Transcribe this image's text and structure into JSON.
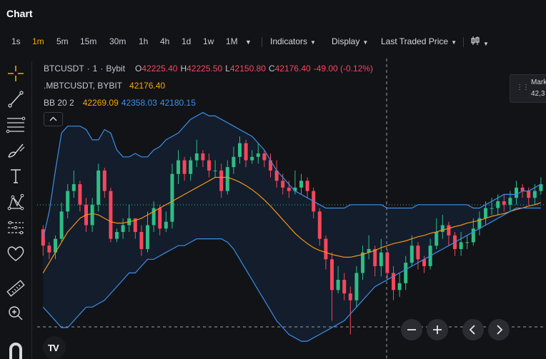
{
  "header": {
    "title": "Chart"
  },
  "toolbar": {
    "timeframes": [
      "1s",
      "1m",
      "5m",
      "15m",
      "30m",
      "1h",
      "4h",
      "1d",
      "1w",
      "1M"
    ],
    "active_timeframe": "1m",
    "indicators_label": "Indicators",
    "display_label": "Display",
    "price_type_label": "Last Traded Price"
  },
  "legend": {
    "symbol": "BTCUSDT",
    "interval": "1",
    "exchange": "Bybit",
    "o_label": "O",
    "open": "42225.40",
    "h_label": "H",
    "high": "42225.50",
    "l_label": "L",
    "low": "42150.80",
    "c_label": "C",
    "close": "42176.40",
    "change": "-49.00 (-0.12%)",
    "index_symbol": ".MBTCUSDT, BYBIT",
    "index_value": "42176.40",
    "bb_label": "BB 20 2",
    "bb_basis": "42269.09",
    "bb_upper": "42358.03",
    "bb_lower": "42180.15"
  },
  "mark_price": {
    "label": "Mark",
    "value": "42,3"
  },
  "colors": {
    "up": "#2ebd85",
    "down": "#f6465d",
    "basis": "#f7931a",
    "band": "#3d8ee8",
    "band_fill": "#131d2b",
    "accent": "#f7a600"
  },
  "icons": {
    "left_toolbar": [
      "crosshair-icon",
      "trend-line-icon",
      "fib-lines-icon",
      "brush-icon",
      "text-icon",
      "pattern-icon",
      "measure-lines-icon",
      "heart-icon",
      "ruler-icon",
      "zoom-in-icon",
      "magnet-icon"
    ],
    "nav": [
      "zoom-out-icon",
      "zoom-in-icon",
      "scroll-left-icon",
      "scroll-right-icon"
    ]
  },
  "chart_data": {
    "type": "candlestick",
    "x_step": "1m",
    "ylim": [
      42000,
      42440
    ],
    "grid": false,
    "open": [
      42190,
      42166,
      42156,
      42176,
      42216,
      42246,
      42256,
      42226,
      42196,
      42226,
      42276,
      42246,
      42176,
      42186,
      42196,
      42206,
      42186,
      42161,
      42196,
      42221,
      42191,
      42201,
      42271,
      42291,
      42271,
      42291,
      42301,
      42291,
      42276,
      42276,
      42246,
      42281,
      42296,
      42316,
      42291,
      42296,
      42301,
      42291,
      42276,
      42261,
      42251,
      42246,
      42251,
      42261,
      42246,
      42216,
      42176,
      42146,
      42101,
      42116,
      42096,
      42086,
      42126,
      42156,
      42161,
      42136,
      42156,
      42126,
      42101,
      42111,
      42141,
      42166,
      42146,
      42136,
      42166,
      42186,
      42196,
      42181,
      42161,
      42171,
      42171,
      42191,
      42206,
      42221,
      42221,
      42231,
      42226,
      42236,
      42251,
      42246,
      42236,
      42246
    ],
    "close": [
      42166,
      42156,
      42176,
      42216,
      42246,
      42256,
      42226,
      42196,
      42226,
      42276,
      42246,
      42176,
      42186,
      42196,
      42206,
      42186,
      42161,
      42196,
      42221,
      42191,
      42201,
      42271,
      42291,
      42271,
      42291,
      42301,
      42291,
      42276,
      42276,
      42246,
      42281,
      42296,
      42316,
      42291,
      42296,
      42301,
      42291,
      42276,
      42261,
      42251,
      42246,
      42251,
      42261,
      42246,
      42216,
      42176,
      42146,
      42101,
      42116,
      42096,
      42086,
      42126,
      42156,
      42161,
      42136,
      42156,
      42126,
      42101,
      42111,
      42141,
      42166,
      42146,
      42136,
      42166,
      42186,
      42196,
      42181,
      42161,
      42171,
      42171,
      42191,
      42206,
      42221,
      42221,
      42231,
      42226,
      42236,
      42251,
      42246,
      42236,
      42246,
      42256
    ],
    "high": [
      42196,
      42171,
      42181,
      42229,
      42256,
      42276,
      42261,
      42236,
      42236,
      42286,
      42280,
      42251,
      42191,
      42206,
      42226,
      42206,
      42196,
      42216,
      42231,
      42226,
      42216,
      42286,
      42306,
      42296,
      42296,
      42321,
      42306,
      42301,
      42291,
      42286,
      42291,
      42311,
      42326,
      42321,
      42306,
      42316,
      42306,
      42301,
      42291,
      42271,
      42261,
      42276,
      42271,
      42266,
      42251,
      42221,
      42181,
      42156,
      42136,
      42126,
      42106,
      42136,
      42166,
      42181,
      42166,
      42176,
      42161,
      42136,
      42126,
      42151,
      42181,
      42171,
      42151,
      42176,
      42206,
      42211,
      42201,
      42186,
      42186,
      42181,
      42206,
      42216,
      42231,
      42236,
      42241,
      42241,
      42246,
      42261,
      42256,
      42251,
      42256,
      42266
    ],
    "low": [
      42151,
      42146,
      42146,
      42171,
      42206,
      42236,
      42216,
      42186,
      42186,
      42216,
      42236,
      42171,
      42171,
      42176,
      42186,
      42176,
      42151,
      42156,
      42186,
      42181,
      42186,
      42191,
      42256,
      42261,
      42261,
      42281,
      42281,
      42266,
      42266,
      42236,
      42241,
      42271,
      42286,
      42281,
      42286,
      42286,
      42281,
      42266,
      42251,
      42241,
      42236,
      42241,
      42241,
      42236,
      42206,
      42166,
      42131,
      42056,
      42096,
      42086,
      42036,
      42076,
      42116,
      42146,
      42121,
      42121,
      42116,
      42086,
      42091,
      42101,
      42136,
      42131,
      42126,
      42131,
      42161,
      42176,
      42166,
      42151,
      42151,
      42161,
      42166,
      42181,
      42196,
      42211,
      42211,
      42216,
      42216,
      42226,
      42236,
      42226,
      42226,
      42241
    ],
    "bb_upper": [
      42176,
      42216,
      42276,
      42331,
      42341,
      42341,
      42341,
      42336,
      42321,
      42321,
      42336,
      42331,
      42306,
      42296,
      42296,
      42301,
      42296,
      42296,
      42306,
      42311,
      42321,
      42326,
      42331,
      42341,
      42351,
      42356,
      42361,
      42356,
      42356,
      42351,
      42346,
      42341,
      42336,
      42331,
      42326,
      42316,
      42306,
      42291,
      42276,
      42266,
      42256,
      42246,
      42241,
      42236,
      42231,
      42226,
      42221,
      42221,
      42221,
      42221,
      42226,
      42226,
      42226,
      42226,
      42226,
      42226,
      42221,
      42221,
      42221,
      42221,
      42221,
      42226,
      42226,
      42226,
      42226,
      42226,
      42226,
      42226,
      42226,
      42226,
      42221,
      42221,
      42226,
      42231,
      42236,
      42241,
      42241,
      42241,
      42246,
      42246,
      42251,
      42256
    ],
    "bb_basis": [
      42126,
      42141,
      42156,
      42171,
      42186,
      42196,
      42206,
      42211,
      42213,
      42211,
      42206,
      42201,
      42199,
      42199,
      42201,
      42203,
      42206,
      42211,
      42216,
      42221,
      42226,
      42231,
      42236,
      42241,
      42246,
      42251,
      42256,
      42261,
      42266,
      42266,
      42266,
      42263,
      42259,
      42254,
      42248,
      42241,
      42233,
      42224,
      42214,
      42204,
      42194,
      42184,
      42176,
      42169,
      42163,
      42159,
      42156,
      42153,
      42151,
      42149,
      42149,
      42151,
      42153,
      42156,
      42159,
      42163,
      42166,
      42169,
      42171,
      42173,
      42176,
      42179,
      42181,
      42184,
      42186,
      42189,
      42191,
      42194,
      42196,
      42199,
      42201,
      42203,
      42206,
      42209,
      42211,
      42213,
      42216,
      42219,
      42221,
      42224,
      42226,
      42229
    ],
    "bb_lower": [
      42076,
      42066,
      42056,
      42046,
      42046,
      42056,
      42066,
      42076,
      42076,
      42081,
      42086,
      42096,
      42106,
      42116,
      42126,
      42126,
      42136,
      42146,
      42146,
      42151,
      42156,
      42161,
      42166,
      42166,
      42171,
      42176,
      42176,
      42176,
      42176,
      42176,
      42171,
      42161,
      42146,
      42131,
      42116,
      42101,
      42086,
      42071,
      42056,
      42046,
      42036,
      42031,
      42026,
      42026,
      42031,
      42036,
      42041,
      42046,
      42051,
      42056,
      42066,
      42076,
      42086,
      42096,
      42106,
      42111,
      42116,
      42121,
      42126,
      42131,
      42136,
      42141,
      42146,
      42151,
      42156,
      42161,
      42166,
      42171,
      42176,
      42181,
      42186,
      42191,
      42196,
      42201,
      42206,
      42211,
      42216,
      42221,
      42221,
      42221,
      42221,
      42221
    ]
  }
}
